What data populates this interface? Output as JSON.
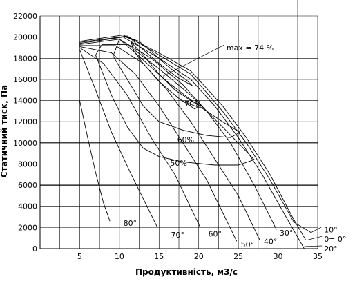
{
  "chart_data": {
    "type": "line",
    "title": "",
    "xlabel": "Продуктивність, м3/с",
    "ylabel": "Статичний тиск, Па",
    "xlim": [
      0,
      35
    ],
    "ylim": [
      0,
      22000
    ],
    "x_ticks": [
      5,
      10,
      15,
      20,
      25,
      30,
      35
    ],
    "y_ticks": [
      0,
      2000,
      4000,
      6000,
      8000,
      10000,
      12000,
      14000,
      16000,
      18000,
      20000,
      22000
    ],
    "grid": true,
    "series": [
      {
        "name": "80°",
        "points": [
          [
            5,
            14000
          ],
          [
            6,
            10500
          ],
          [
            7,
            7200
          ],
          [
            8,
            4300
          ],
          [
            8.8,
            2600
          ]
        ]
      },
      {
        "name": "70°",
        "points": [
          [
            5,
            18800
          ],
          [
            7,
            15000
          ],
          [
            9,
            11000
          ],
          [
            11.5,
            7000
          ],
          [
            14.8,
            2000
          ]
        ]
      },
      {
        "name": "60°",
        "points": [
          [
            5,
            19000
          ],
          [
            8,
            17500
          ],
          [
            11,
            14500
          ],
          [
            14,
            10500
          ],
          [
            17,
            7000
          ],
          [
            20.2,
            2000
          ]
        ]
      },
      {
        "name": "50°",
        "points": [
          [
            5,
            19100
          ],
          [
            9,
            18500
          ],
          [
            12,
            16500
          ],
          [
            15,
            13500
          ],
          [
            18,
            10000
          ],
          [
            21,
            6500
          ],
          [
            24.8,
            700
          ]
        ]
      },
      {
        "name": "40°",
        "points": [
          [
            5,
            19200
          ],
          [
            9.5,
            19200
          ],
          [
            13,
            17500
          ],
          [
            16,
            15000
          ],
          [
            19,
            12000
          ],
          [
            22,
            8500
          ],
          [
            25,
            5000
          ],
          [
            27.7,
            800
          ]
        ]
      },
      {
        "name": "30°",
        "points": [
          [
            5,
            19300
          ],
          [
            10,
            19800
          ],
          [
            14,
            18000
          ],
          [
            18,
            15500
          ],
          [
            21,
            13000
          ],
          [
            24,
            10000
          ],
          [
            27,
            6000
          ],
          [
            29.8,
            1800
          ]
        ]
      },
      {
        "name": "20°",
        "points": [
          [
            5,
            19400
          ],
          [
            10.5,
            20000
          ],
          [
            15,
            18000
          ],
          [
            19,
            16000
          ],
          [
            22,
            13500
          ],
          [
            25,
            10500
          ],
          [
            28,
            7000
          ],
          [
            31,
            3000
          ],
          [
            33.3,
            0
          ]
        ]
      },
      {
        "name": "10°",
        "points": [
          [
            5,
            19500
          ],
          [
            11,
            20100
          ],
          [
            15,
            18300
          ],
          [
            19,
            16500
          ],
          [
            23,
            13000
          ],
          [
            26,
            10000
          ],
          [
            29,
            6500
          ],
          [
            32,
            2500
          ],
          [
            34.2,
            1500
          ]
        ]
      },
      {
        "name": "0°",
        "points": [
          [
            5,
            19600
          ],
          [
            10.5,
            20200
          ],
          [
            15,
            18500
          ],
          [
            19,
            16800
          ],
          [
            23,
            13500
          ],
          [
            26,
            10500
          ],
          [
            29,
            7000
          ],
          [
            31.8,
            3000
          ],
          [
            33.5,
            800
          ]
        ]
      }
    ],
    "efficiency_curves": [
      {
        "name": "70%",
        "points": [
          [
            11.5,
            19500
          ],
          [
            13,
            18300
          ],
          [
            15,
            16500
          ],
          [
            17,
            15000
          ],
          [
            19,
            14000
          ],
          [
            20.2,
            13600
          ],
          [
            19.5,
            13200
          ],
          [
            17.5,
            14200
          ],
          [
            15,
            15800
          ],
          [
            13,
            17500
          ],
          [
            11.8,
            18700
          ],
          [
            11.5,
            19500
          ]
        ]
      },
      {
        "name": "60%",
        "points": [
          [
            9.2,
            18200
          ],
          [
            11,
            16000
          ],
          [
            13,
            13500
          ],
          [
            15,
            12000
          ],
          [
            18,
            11200
          ],
          [
            21,
            10700
          ],
          [
            24,
            10500
          ],
          [
            25.2,
            11000
          ],
          [
            23,
            12000
          ],
          [
            20,
            13500
          ],
          [
            16,
            15800
          ],
          [
            12,
            18500
          ],
          [
            10,
            19800
          ],
          [
            9.2,
            18200
          ]
        ]
      },
      {
        "name": "50%",
        "points": [
          [
            7,
            18300
          ],
          [
            9,
            14500
          ],
          [
            11,
            11500
          ],
          [
            13,
            9500
          ],
          [
            15,
            8700
          ],
          [
            18,
            8200
          ],
          [
            22,
            7900
          ],
          [
            25,
            7900
          ],
          [
            27,
            8400
          ],
          [
            26,
            9200
          ],
          [
            23,
            11500
          ],
          [
            19,
            14500
          ],
          [
            15,
            17000
          ],
          [
            11,
            19300
          ],
          [
            7.8,
            19300
          ],
          [
            7,
            18300
          ]
        ]
      },
      {
        "name": "max = 74 %",
        "points": [
          [
            10.5,
            20100
          ],
          [
            12.5,
            19600
          ],
          [
            14.5,
            18300
          ],
          [
            16.5,
            17000
          ],
          [
            18.5,
            15900
          ],
          [
            19.2,
            15400
          ],
          [
            17.5,
            16100
          ],
          [
            15,
            17500
          ],
          [
            13,
            18800
          ],
          [
            11.5,
            19800
          ],
          [
            10.5,
            20100
          ]
        ]
      }
    ],
    "annotations": [
      {
        "text": "max = 74 %",
        "x": 23.5,
        "y": 19000,
        "leader_to": [
          15.5,
          16300
        ]
      },
      {
        "text": "70%",
        "x": 18.2,
        "y": 13700,
        "leader_to": [
          20.2,
          13300
        ]
      },
      {
        "text": "60%",
        "x": 17.3,
        "y": 10300
      },
      {
        "text": "50%",
        "x": 16.4,
        "y": 8100
      },
      {
        "text": "80°",
        "x": 10.5,
        "y": 2400
      },
      {
        "text": "70°",
        "x": 16.5,
        "y": 1300
      },
      {
        "text": "60°",
        "x": 21.2,
        "y": 1400
      },
      {
        "text": "50°",
        "x": 25.3,
        "y": 400
      },
      {
        "text": "40°",
        "x": 28.2,
        "y": 700
      },
      {
        "text": "30°",
        "x": 30.2,
        "y": 1500
      },
      {
        "text": "10°",
        "x": 35.8,
        "y": 1800,
        "leader_to": [
          34.1,
          1500
        ]
      },
      {
        "text": "0= 0°",
        "x": 35.8,
        "y": 900,
        "leader_to": [
          33.6,
          800
        ]
      },
      {
        "text": "20°",
        "x": 35.8,
        "y": 0,
        "leader_to": [
          33.3,
          200
        ]
      }
    ]
  }
}
